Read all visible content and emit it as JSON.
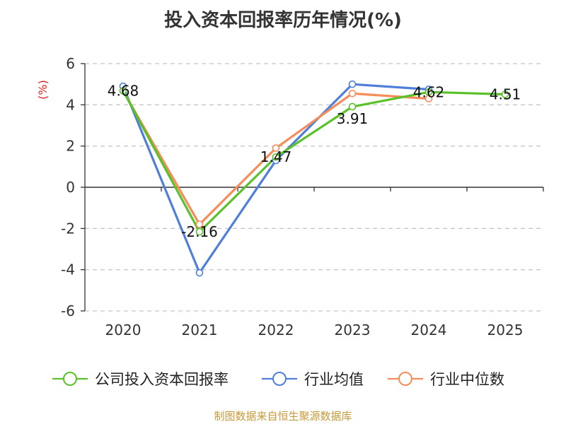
{
  "chart_data": {
    "type": "line",
    "title": "投入资本回报率历年情况(%)",
    "ylabel": "(%)",
    "categories": [
      "2020",
      "2021",
      "2022",
      "2023",
      "2024",
      "2025"
    ],
    "ylim": [
      -6,
      6
    ],
    "yticks": [
      6,
      4,
      2,
      0,
      -2,
      -4,
      -6
    ],
    "grid": true,
    "legend_position": "bottom",
    "series": [
      {
        "name": "公司投入资本回报率",
        "color": "#5bc12a",
        "values": [
          4.68,
          -2.16,
          1.47,
          3.91,
          4.62,
          4.51
        ],
        "labels": true
      },
      {
        "name": "行业均值",
        "color": "#4f7fd8",
        "values": [
          4.9,
          -4.15,
          1.3,
          5.0,
          4.75,
          null
        ],
        "labels": false
      },
      {
        "name": "行业中位数",
        "color": "#f58d5a",
        "values": [
          4.68,
          -1.8,
          1.9,
          4.55,
          4.3,
          null
        ],
        "labels": false
      }
    ]
  },
  "source_text": "制图数据来自恒生聚源数据库"
}
